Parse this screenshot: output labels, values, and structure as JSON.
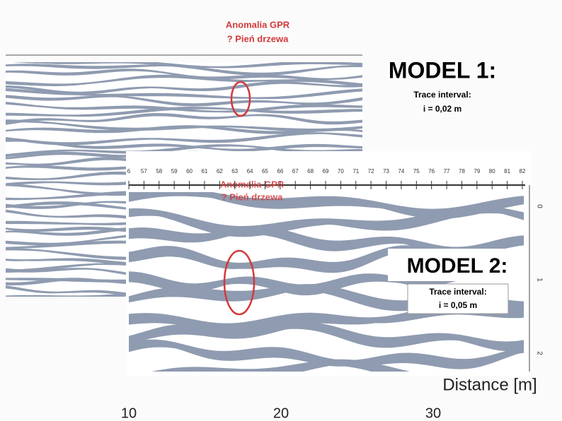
{
  "annotation": {
    "line1": "Anomalia GPR",
    "line2": "? Pień drzewa"
  },
  "model1": {
    "title": "MODEL 1:",
    "note": "Trace interval:",
    "interval": "i = 0,02 m"
  },
  "model2": {
    "title": "MODEL 2:",
    "note": "Trace interval:",
    "interval": "i = 0,05 m",
    "annotation": {
      "line1": "Anomalia GPR",
      "line2": "? Pień drzewa"
    },
    "top_ticks": [
      "6",
      "57",
      "58",
      "59",
      "60",
      "61",
      "62",
      "63",
      "64",
      "65",
      "66",
      "67",
      "68",
      "69",
      "70",
      "71",
      "72",
      "73",
      "74",
      "75",
      "76",
      "77",
      "78",
      "79",
      "80",
      "81",
      "82"
    ],
    "depth_ticks": [
      "0",
      "1",
      "2"
    ]
  },
  "distance_label": "Distance [m]",
  "bottom_ticks": [
    "10",
    "20",
    "30"
  ]
}
